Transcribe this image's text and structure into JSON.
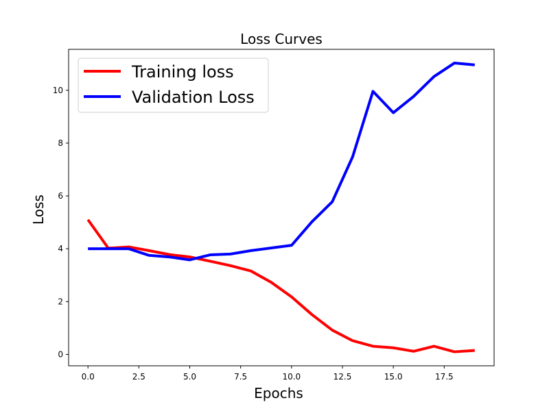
{
  "chart_data": {
    "type": "line",
    "title": "Loss Curves",
    "xlabel": "Epochs",
    "ylabel": "Loss",
    "xlim": [
      -0.95,
      19.95
    ],
    "ylim": [
      -0.43,
      11.55
    ],
    "xticks": [
      0.0,
      2.5,
      5.0,
      7.5,
      10.0,
      12.5,
      15.0,
      17.5
    ],
    "xtick_labels": [
      "0.0",
      "2.5",
      "5.0",
      "7.5",
      "10.0",
      "12.5",
      "15.0",
      "17.5"
    ],
    "yticks": [
      0,
      2,
      4,
      6,
      8,
      10
    ],
    "ytick_labels": [
      "0",
      "2",
      "4",
      "6",
      "8",
      "10"
    ],
    "grid": false,
    "legend_position": "top-left",
    "x": [
      0,
      1,
      2,
      3,
      4,
      5,
      6,
      7,
      8,
      9,
      10,
      11,
      12,
      13,
      14,
      15,
      16,
      17,
      18,
      19
    ],
    "series": [
      {
        "name": "Training loss",
        "color": "#ff0000",
        "values": [
          5.1,
          4.02,
          4.07,
          3.93,
          3.78,
          3.69,
          3.53,
          3.36,
          3.16,
          2.73,
          2.18,
          1.51,
          0.92,
          0.52,
          0.31,
          0.25,
          0.12,
          0.31,
          0.1,
          0.15
        ]
      },
      {
        "name": "Validation Loss",
        "color": "#0000ff",
        "values": [
          4.0,
          4.0,
          4.0,
          3.75,
          3.69,
          3.58,
          3.77,
          3.8,
          3.93,
          4.03,
          4.13,
          5.02,
          5.78,
          7.48,
          9.96,
          9.15,
          9.77,
          10.52,
          11.03,
          10.96
        ]
      }
    ]
  }
}
